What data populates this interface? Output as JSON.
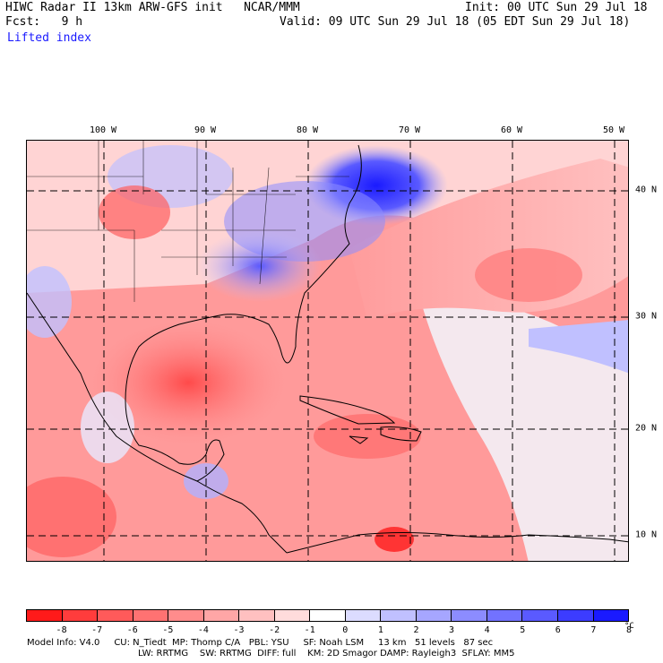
{
  "header": {
    "title_left": "HIWC Radar II 13km ARW-GFS init   NCAR/MMM",
    "init": "Init: 00 UTC Sun 29 Jul 18",
    "fcst": "Fcst:   9 h",
    "valid": "Valid: 09 UTC Sun 29 Jul 18 (05 EDT Sun 29 Jul 18)",
    "field": "Lifted index"
  },
  "map": {
    "lon_labels": [
      "100 W",
      "90 W",
      "80 W",
      "70 W",
      "60 W",
      "50 W"
    ],
    "lat_labels": [
      "40 N",
      "30 N",
      "20 N",
      "10 N"
    ],
    "field_name": "Lifted index",
    "units": "°C"
  },
  "colorbar": {
    "labels": [
      "-8",
      "-7",
      "-6",
      "-5",
      "-4",
      "-3",
      "-2",
      "-1",
      "0",
      "1",
      "2",
      "3",
      "4",
      "5",
      "6",
      "7",
      "8"
    ],
    "unit": "°C",
    "colors": [
      "#ff1a1a",
      "#ff3c3c",
      "#ff5a5a",
      "#ff7272",
      "#ff8c8c",
      "#ffa6a6",
      "#ffc0c0",
      "#ffdcdc",
      "#ffffff",
      "#dcdcff",
      "#c0c0ff",
      "#a6a6ff",
      "#8c8cff",
      "#7272ff",
      "#5a5aff",
      "#3c3cff",
      "#1a1aff"
    ]
  },
  "footer": {
    "line1": "Model Info: V4.0     CU: N_Tiedt  MP: Thomp C/A   PBL: YSU     SF: Noah LSM     13 km   51 levels   87 sec",
    "line2": "LW: RRTMG    SW: RRTMG  DIFF: full    KM: 2D Smagor DAMP: Rayleigh3  SFLAY: MM5"
  }
}
